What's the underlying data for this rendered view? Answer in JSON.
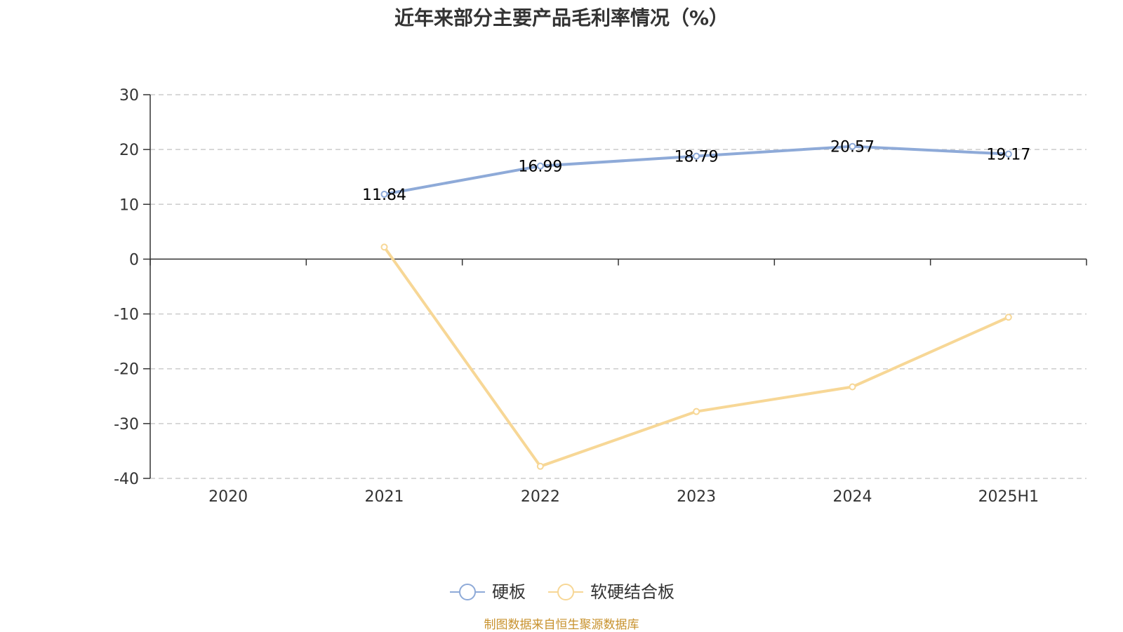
{
  "chart_data": {
    "type": "line",
    "title": "近年来部分主要产品毛利率情况（%）",
    "categories": [
      "2020",
      "2021",
      "2022",
      "2023",
      "2024",
      "2025H1"
    ],
    "ylim": [
      -40,
      30
    ],
    "yticks": [
      30,
      20,
      10,
      0,
      -10,
      -20,
      -30,
      -40
    ],
    "grid": true,
    "legend_position": "bottom",
    "series": [
      {
        "name": "硬板",
        "color": "#8eaad8",
        "values": [
          null,
          11.84,
          16.99,
          18.79,
          20.57,
          19.17
        ],
        "labels": [
          "",
          "11.84",
          "16.99",
          "18.79",
          "20.57",
          "19.17"
        ]
      },
      {
        "name": "软硬结合板",
        "color": "#f7d796",
        "values": [
          null,
          2.2,
          -37.8,
          -27.8,
          -23.3,
          -10.6
        ],
        "labels": [
          "",
          "",
          "",
          "",
          "",
          ""
        ]
      }
    ]
  },
  "source_note": "制图数据来自恒生聚源数据库"
}
